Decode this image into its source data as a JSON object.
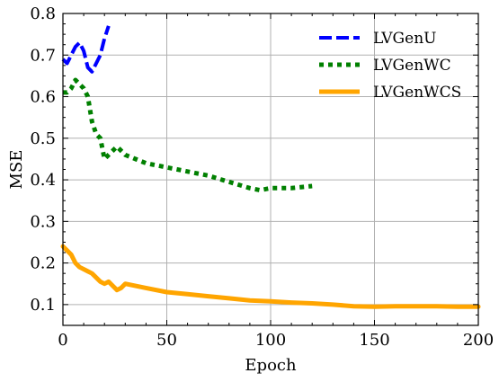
{
  "chart_data": {
    "type": "line",
    "xlabel": "Epoch",
    "ylabel": "MSE",
    "xlim": [
      0,
      200
    ],
    "ylim": [
      0.05,
      0.8
    ],
    "xticks": [
      0,
      50,
      100,
      150,
      200
    ],
    "yticks": [
      0.1,
      0.2,
      0.3,
      0.4,
      0.5,
      0.6,
      0.7,
      0.8
    ],
    "grid": true,
    "legend_position": "top-right",
    "series": [
      {
        "name": "LVGenU",
        "color": "#0000ff",
        "style": "dashed",
        "x": [
          0,
          2,
          4,
          6,
          8,
          10,
          12,
          14,
          16,
          18,
          20,
          22
        ],
        "y": [
          0.69,
          0.68,
          0.7,
          0.72,
          0.73,
          0.71,
          0.67,
          0.66,
          0.68,
          0.7,
          0.74,
          0.77
        ]
      },
      {
        "name": "LVGenWC",
        "color": "#008000",
        "style": "dotted",
        "x": [
          0,
          2,
          4,
          6,
          8,
          10,
          12,
          14,
          16,
          18,
          20,
          22,
          24,
          26,
          28,
          30,
          40,
          50,
          60,
          70,
          80,
          90,
          95,
          100,
          110,
          120
        ],
        "y": [
          0.61,
          0.61,
          0.62,
          0.64,
          0.63,
          0.62,
          0.6,
          0.54,
          0.51,
          0.5,
          0.45,
          0.46,
          0.47,
          0.48,
          0.47,
          0.46,
          0.44,
          0.43,
          0.42,
          0.41,
          0.395,
          0.38,
          0.375,
          0.38,
          0.38,
          0.385
        ]
      },
      {
        "name": "LVGenWCS",
        "color": "#ffa500",
        "style": "solid",
        "x": [
          0,
          2,
          4,
          6,
          8,
          10,
          12,
          14,
          16,
          18,
          20,
          22,
          24,
          26,
          28,
          30,
          40,
          50,
          60,
          70,
          80,
          90,
          100,
          110,
          120,
          130,
          140,
          150,
          160,
          170,
          180,
          190,
          200
        ],
        "y": [
          0.24,
          0.23,
          0.22,
          0.2,
          0.19,
          0.185,
          0.18,
          0.175,
          0.165,
          0.155,
          0.15,
          0.155,
          0.145,
          0.135,
          0.14,
          0.15,
          0.14,
          0.13,
          0.125,
          0.12,
          0.115,
          0.11,
          0.108,
          0.105,
          0.103,
          0.1,
          0.096,
          0.095,
          0.096,
          0.096,
          0.096,
          0.095,
          0.095
        ]
      }
    ]
  }
}
